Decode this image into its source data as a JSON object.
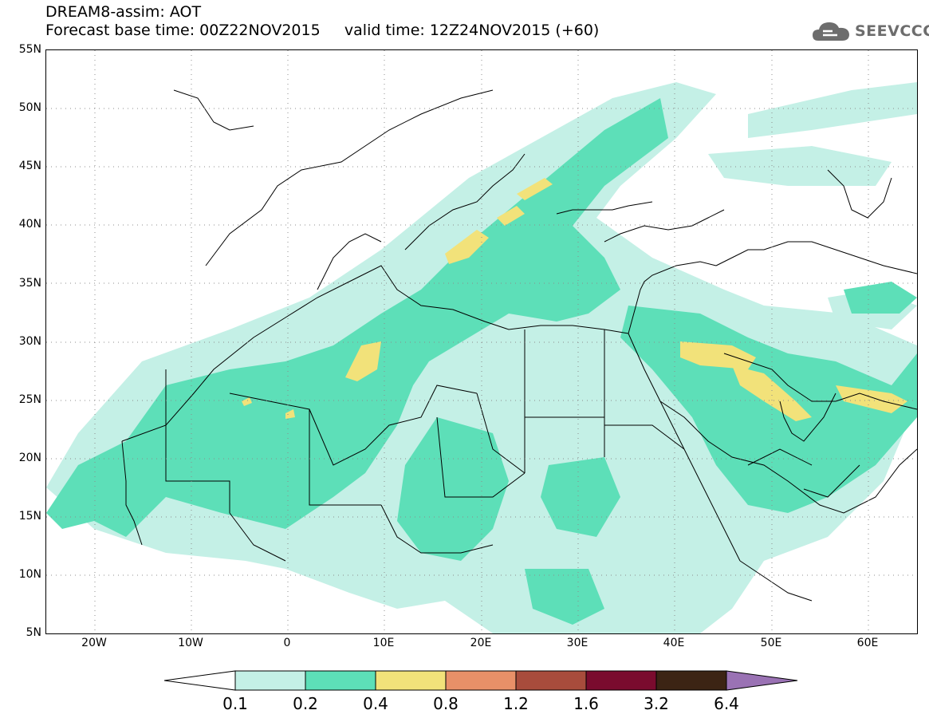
{
  "header": {
    "line1": "DREAM8-assim: AOT",
    "base_label": "Forecast base time: 00Z22NOV2015",
    "valid_label": "valid time: 12Z24NOV2015 (+60)"
  },
  "logo": {
    "text": "SEEVCCC",
    "icon": "cloud-icon"
  },
  "map": {
    "lat_labels": [
      "55N",
      "50N",
      "45N",
      "40N",
      "35N",
      "30N",
      "25N",
      "20N",
      "15N",
      "10N",
      "5N"
    ],
    "lon_labels": [
      "20W",
      "10W",
      "0",
      "10E",
      "20E",
      "30E",
      "40E",
      "50E",
      "60E"
    ],
    "extent": {
      "lon_min": -25,
      "lon_max": 65,
      "lat_min": 5,
      "lat_max": 55
    }
  },
  "colorbar": {
    "labels": [
      "0.1",
      "0.2",
      "0.4",
      "0.8",
      "1.2",
      "1.6",
      "3.2",
      "6.4"
    ],
    "colors": [
      "#c4f0e6",
      "#5ddfb8",
      "#f2e27a",
      "#e89068",
      "#a84c3c",
      "#7a0b2e",
      "#3c2414",
      "#9a72b4"
    ],
    "under_color": "#ffffff",
    "over_color": "#9a72b4"
  }
}
